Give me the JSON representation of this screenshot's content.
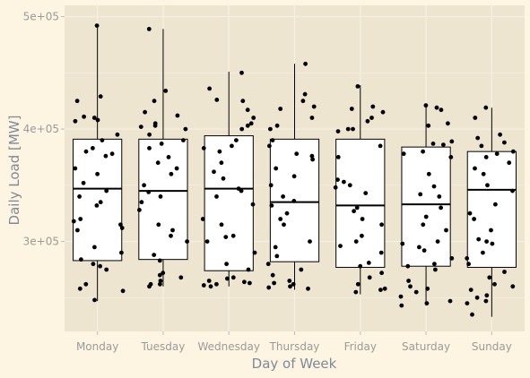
{
  "chart_data": {
    "type": "boxplot_with_jitter",
    "title": "",
    "xlabel": "Day of Week",
    "ylabel": "Daily Load [MW]",
    "ylim": [
      220000,
      510000
    ],
    "yticks": [
      {
        "value": 300000,
        "label": "3e+05"
      },
      {
        "value": 400000,
        "label": "4e+05"
      },
      {
        "value": 500000,
        "label": "5e+05"
      }
    ],
    "grid": true,
    "colors": {
      "panel": "#ede5cf",
      "background": "#fdf5e1",
      "grid": "#f7f1e3",
      "box_fill": "#ffffff",
      "stroke": "#000000",
      "points": "#000000"
    },
    "categories": [
      "Monday",
      "Tuesday",
      "Wednesday",
      "Thursday",
      "Friday",
      "Saturday",
      "Sunday"
    ],
    "boxes": [
      {
        "category": "Monday",
        "whisker_low": 247000,
        "q1": 283000,
        "median": 347000,
        "q3": 391000,
        "whisker_high": 493000
      },
      {
        "category": "Tuesday",
        "whisker_low": 260000,
        "q1": 284000,
        "median": 345000,
        "q3": 391000,
        "whisker_high": 489000
      },
      {
        "category": "Wednesday",
        "whisker_low": 260000,
        "q1": 274000,
        "median": 347000,
        "q3": 394000,
        "whisker_high": 451000
      },
      {
        "category": "Thursday",
        "whisker_low": 257000,
        "q1": 282000,
        "median": 335000,
        "q3": 391000,
        "whisker_high": 458000
      },
      {
        "category": "Friday",
        "whisker_low": 253000,
        "q1": 277000,
        "median": 332000,
        "q3": 391000,
        "whisker_high": 439000
      },
      {
        "category": "Saturday",
        "whisker_low": 243000,
        "q1": 278000,
        "median": 333000,
        "q3": 384000,
        "whisker_high": 420000
      },
      {
        "category": "Sunday",
        "whisker_low": 233000,
        "q1": 277000,
        "median": 346000,
        "q3": 380000,
        "whisker_high": 419000
      }
    ],
    "points": [
      {
        "category": "Monday",
        "values": [
          492000,
          429000,
          425000,
          411000,
          410000,
          408000,
          407000,
          395000,
          390000,
          383000,
          380000,
          378000,
          376000,
          365000,
          360000,
          352000,
          345000,
          340000,
          335000,
          332000,
          320000,
          318000,
          315000,
          312000,
          310000,
          295000,
          290000,
          284000,
          280000,
          278000,
          275000,
          262000,
          258000,
          256000,
          248000
        ]
      },
      {
        "category": "Tuesday",
        "values": [
          489000,
          434000,
          425000,
          415000,
          412000,
          405000,
          403000,
          402000,
          400000,
          395000,
          390000,
          387000,
          383000,
          375000,
          370000,
          365000,
          360000,
          350000,
          344000,
          340000,
          335000,
          328000,
          315000,
          310000,
          305000,
          300000,
          288000,
          283000,
          272000,
          270000,
          268000,
          265000,
          262000,
          262000,
          260000
        ]
      },
      {
        "category": "Wednesday",
        "values": [
          450000,
          436000,
          426000,
          425000,
          417000,
          410000,
          405000,
          403000,
          400000,
          390000,
          385000,
          383000,
          380000,
          370000,
          362000,
          356000,
          347000,
          345000,
          340000,
          333000,
          320000,
          315000,
          305000,
          304000,
          300000,
          290000,
          280000,
          275000,
          268000,
          267000,
          265000,
          264000,
          263000,
          262000,
          261000,
          260000
        ]
      },
      {
        "category": "Thursday",
        "values": [
          458000,
          431000,
          425000,
          420000,
          418000,
          410000,
          403000,
          400000,
          390000,
          385000,
          378000,
          376000,
          373000,
          365000,
          358000,
          350000,
          340000,
          336000,
          332000,
          325000,
          320000,
          315000,
          300000,
          295000,
          287000,
          280000,
          275000,
          270000,
          265000,
          263000,
          262000,
          260000,
          259000,
          258000
        ]
      },
      {
        "category": "Friday",
        "values": [
          438000,
          420000,
          418000,
          415000,
          410000,
          407000,
          400000,
          400000,
          398000,
          385000,
          375000,
          355000,
          353000,
          350000,
          348000,
          343000,
          330000,
          327000,
          320000,
          315000,
          305000,
          300000,
          296000,
          290000,
          281000,
          278000,
          272000,
          268000,
          262000,
          258000,
          257000,
          255000
        ]
      },
      {
        "category": "Saturday",
        "values": [
          421000,
          419000,
          417000,
          405000,
          403000,
          389000,
          387000,
          386000,
          380000,
          378000,
          375000,
          360000,
          349000,
          342000,
          340000,
          330000,
          322000,
          315000,
          310000,
          300000,
          298000,
          295000,
          292000,
          285000,
          280000,
          278000,
          275000,
          265000,
          260000,
          258000,
          255000,
          251000,
          247000,
          245000,
          243000
        ]
      },
      {
        "category": "Sunday",
        "values": [
          419000,
          410000,
          395000,
          392000,
          388000,
          385000,
          380000,
          378000,
          375000,
          370000,
          365000,
          360000,
          350000,
          345000,
          333000,
          325000,
          320000,
          310000,
          302000,
          300000,
          298000,
          290000,
          285000,
          280000,
          273000,
          268000,
          262000,
          260000,
          257000,
          252000,
          250000,
          247000,
          245000,
          235000
        ]
      }
    ]
  }
}
